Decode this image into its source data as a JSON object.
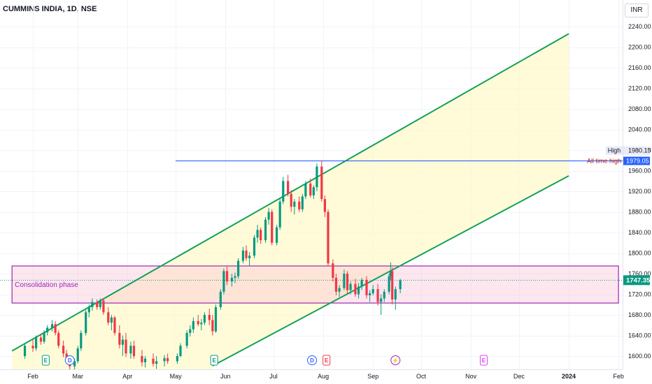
{
  "header": {
    "symbol_title": "CUMMINS INDIA, 1D, NSE",
    "currency": "INR"
  },
  "chart_data": {
    "type": "candlestick",
    "title": "CUMMINS INDIA, 1D, NSE",
    "y_ticks": [
      1600,
      1640,
      1680,
      1720,
      1760,
      1800,
      1840,
      1880,
      1920,
      1960,
      2000,
      2040,
      2080,
      2120,
      2160,
      2200,
      2240
    ],
    "y_tick_labels": [
      "1600.00",
      "1640.00",
      "1680.00",
      "1720.00",
      "1760.00",
      "1800.00",
      "1840.00",
      "1880.00",
      "1920.00",
      "1960.00",
      "2000.00",
      "2040.00",
      "2080.00",
      "2120.00",
      "2160.00",
      "2200.00",
      "2240.00"
    ],
    "ylim": [
      1582,
      2255
    ],
    "x_tick_labels": [
      "Feb",
      "Mar",
      "Apr",
      "May",
      "Jun",
      "Jul",
      "Aug",
      "Sep",
      "Oct",
      "Nov",
      "Dec",
      "2024",
      "Feb"
    ],
    "x_tick_dates": [
      "2023-02-01",
      "2023-03-01",
      "2023-04-01",
      "2023-05-01",
      "2023-06-01",
      "2023-07-01",
      "2023-08-01",
      "2023-09-01",
      "2023-10-01",
      "2023-11-01",
      "2023-12-01",
      "2024-01-01",
      "2024-02-01"
    ],
    "x_tick_bold": [
      false,
      false,
      false,
      false,
      false,
      false,
      false,
      false,
      false,
      false,
      false,
      true,
      false
    ],
    "last_price": {
      "value": 1747.35,
      "label": "1747.35"
    },
    "high_marker": {
      "label": "High",
      "value_label": "1980.15",
      "value": 1980.15
    },
    "all_time_high": {
      "label": "All time high",
      "value_label": "1979.05",
      "value": 1979.05,
      "start": "2023-05-01"
    },
    "consolidation_zone": {
      "label": "Consolidation phase",
      "top": 1775,
      "bottom": 1703,
      "start": "2023-01-19",
      "end": "2024-02-01"
    },
    "channel": {
      "upper": [
        [
          "2023-01-19",
          1610
        ],
        [
          "2024-01-01",
          2226
        ]
      ],
      "lower": [
        [
          "2023-05-24",
          1581
        ],
        [
          "2024-01-01",
          1950
        ]
      ]
    },
    "events": [
      {
        "type": "E",
        "date": "2023-02-09",
        "color": "#089981"
      },
      {
        "type": "D",
        "date": "2023-02-24",
        "color": "#2962ff"
      },
      {
        "type": "E",
        "date": "2023-05-25",
        "color": "#089981"
      },
      {
        "type": "D",
        "date": "2023-07-25",
        "color": "#2962ff"
      },
      {
        "type": "E",
        "date": "2023-08-03",
        "color": "#f23645"
      },
      {
        "type": "⚡",
        "date": "2023-09-15",
        "color": "#9c27b0"
      },
      {
        "type": "E",
        "date": "2023-11-09",
        "color": "#e040fb"
      }
    ],
    "series": [
      {
        "kind": "ohlc_daily",
        "data": [
          [
            "2023-01-27",
            1600,
            1625,
            1595,
            1620
          ],
          [
            "2023-02-01",
            1620,
            1632,
            1608,
            1615
          ],
          [
            "2023-02-03",
            1615,
            1640,
            1610,
            1636
          ],
          [
            "2023-02-06",
            1636,
            1642,
            1622,
            1628
          ],
          [
            "2023-02-08",
            1628,
            1650,
            1624,
            1646
          ],
          [
            "2023-02-10",
            1646,
            1660,
            1640,
            1655
          ],
          [
            "2023-02-13",
            1655,
            1670,
            1648,
            1662
          ],
          [
            "2023-02-15",
            1662,
            1668,
            1640,
            1645
          ],
          [
            "2023-02-17",
            1645,
            1650,
            1615,
            1620
          ],
          [
            "2023-02-20",
            1620,
            1630,
            1598,
            1605
          ],
          [
            "2023-02-22",
            1605,
            1612,
            1585,
            1590
          ],
          [
            "2023-02-24",
            1590,
            1600,
            1570,
            1580
          ],
          [
            "2023-02-27",
            1580,
            1595,
            1572,
            1590
          ],
          [
            "2023-03-01",
            1590,
            1620,
            1586,
            1615
          ],
          [
            "2023-03-03",
            1615,
            1650,
            1610,
            1645
          ],
          [
            "2023-03-06",
            1645,
            1690,
            1640,
            1685
          ],
          [
            "2023-03-08",
            1685,
            1700,
            1675,
            1695
          ],
          [
            "2023-03-10",
            1695,
            1712,
            1688,
            1705
          ],
          [
            "2023-03-13",
            1705,
            1710,
            1690,
            1695
          ],
          [
            "2023-03-15",
            1695,
            1712,
            1690,
            1708
          ],
          [
            "2023-03-17",
            1708,
            1712,
            1680,
            1685
          ],
          [
            "2023-03-20",
            1685,
            1695,
            1660,
            1665
          ],
          [
            "2023-03-22",
            1665,
            1680,
            1650,
            1675
          ],
          [
            "2023-03-24",
            1675,
            1678,
            1640,
            1645
          ],
          [
            "2023-03-27",
            1645,
            1660,
            1615,
            1622
          ],
          [
            "2023-03-29",
            1622,
            1640,
            1600,
            1632
          ],
          [
            "2023-03-31",
            1632,
            1645,
            1598,
            1605
          ],
          [
            "2023-04-03",
            1605,
            1628,
            1595,
            1620
          ],
          [
            "2023-04-05",
            1620,
            1630,
            1595,
            1600
          ],
          [
            "2023-04-10",
            1600,
            1612,
            1580,
            1588
          ],
          [
            "2023-04-12",
            1588,
            1600,
            1578,
            1595
          ],
          [
            "2023-04-17",
            1595,
            1605,
            1580,
            1585
          ],
          [
            "2023-04-19",
            1585,
            1600,
            1575,
            1590
          ],
          [
            "2023-04-24",
            1590,
            1602,
            1580,
            1596
          ],
          [
            "2023-04-26",
            1596,
            1605,
            1585,
            1590
          ],
          [
            "2023-05-02",
            1590,
            1605,
            1585,
            1600
          ],
          [
            "2023-05-04",
            1600,
            1625,
            1598,
            1620
          ],
          [
            "2023-05-08",
            1620,
            1650,
            1615,
            1645
          ],
          [
            "2023-05-10",
            1645,
            1660,
            1638,
            1652
          ],
          [
            "2023-05-12",
            1652,
            1675,
            1645,
            1668
          ],
          [
            "2023-05-15",
            1668,
            1680,
            1658,
            1662
          ],
          [
            "2023-05-17",
            1662,
            1672,
            1650,
            1665
          ],
          [
            "2023-05-19",
            1665,
            1685,
            1660,
            1680
          ],
          [
            "2023-05-22",
            1680,
            1692,
            1660,
            1670
          ],
          [
            "2023-05-24",
            1670,
            1680,
            1640,
            1648
          ],
          [
            "2023-05-26",
            1648,
            1700,
            1645,
            1695
          ],
          [
            "2023-05-29",
            1695,
            1730,
            1690,
            1725
          ],
          [
            "2023-05-31",
            1725,
            1770,
            1720,
            1765
          ],
          [
            "2023-06-02",
            1765,
            1775,
            1738,
            1745
          ],
          [
            "2023-06-05",
            1745,
            1760,
            1735,
            1752
          ],
          [
            "2023-06-07",
            1752,
            1762,
            1742,
            1755
          ],
          [
            "2023-06-09",
            1755,
            1790,
            1750,
            1785
          ],
          [
            "2023-06-12",
            1785,
            1812,
            1780,
            1805
          ],
          [
            "2023-06-14",
            1805,
            1815,
            1785,
            1790
          ],
          [
            "2023-06-16",
            1790,
            1802,
            1775,
            1795
          ],
          [
            "2023-06-19",
            1795,
            1835,
            1790,
            1830
          ],
          [
            "2023-06-21",
            1830,
            1855,
            1820,
            1845
          ],
          [
            "2023-06-23",
            1845,
            1850,
            1818,
            1825
          ],
          [
            "2023-06-26",
            1825,
            1870,
            1820,
            1865
          ],
          [
            "2023-06-28",
            1865,
            1888,
            1855,
            1880
          ],
          [
            "2023-06-30",
            1880,
            1885,
            1815,
            1820
          ],
          [
            "2023-07-03",
            1820,
            1855,
            1815,
            1850
          ],
          [
            "2023-07-05",
            1850,
            1905,
            1845,
            1900
          ],
          [
            "2023-07-07",
            1900,
            1948,
            1895,
            1940
          ],
          [
            "2023-07-10",
            1940,
            1952,
            1910,
            1915
          ],
          [
            "2023-07-12",
            1915,
            1922,
            1880,
            1890
          ],
          [
            "2023-07-14",
            1890,
            1905,
            1875,
            1900
          ],
          [
            "2023-07-17",
            1900,
            1910,
            1880,
            1885
          ],
          [
            "2023-07-19",
            1885,
            1915,
            1880,
            1910
          ],
          [
            "2023-07-21",
            1910,
            1940,
            1905,
            1935
          ],
          [
            "2023-07-24",
            1935,
            1945,
            1908,
            1912
          ],
          [
            "2023-07-26",
            1912,
            1932,
            1905,
            1928
          ],
          [
            "2023-07-28",
            1928,
            1974,
            1920,
            1968
          ],
          [
            "2023-07-31",
            1968,
            1980,
            1900,
            1905
          ],
          [
            "2023-08-02",
            1905,
            1912,
            1870,
            1880
          ],
          [
            "2023-08-04",
            1880,
            1885,
            1775,
            1780
          ],
          [
            "2023-08-07",
            1780,
            1788,
            1745,
            1752
          ],
          [
            "2023-08-09",
            1752,
            1760,
            1718,
            1725
          ],
          [
            "2023-08-11",
            1725,
            1738,
            1715,
            1732
          ],
          [
            "2023-08-14",
            1732,
            1768,
            1728,
            1760
          ],
          [
            "2023-08-16",
            1760,
            1765,
            1722,
            1728
          ],
          [
            "2023-08-18",
            1728,
            1745,
            1720,
            1740
          ],
          [
            "2023-08-21",
            1740,
            1750,
            1715,
            1720
          ],
          [
            "2023-08-23",
            1720,
            1742,
            1712,
            1735
          ],
          [
            "2023-08-25",
            1735,
            1752,
            1728,
            1748
          ],
          [
            "2023-08-28",
            1748,
            1755,
            1712,
            1718
          ],
          [
            "2023-08-30",
            1718,
            1728,
            1705,
            1722
          ],
          [
            "2023-09-01",
            1722,
            1738,
            1718,
            1730
          ],
          [
            "2023-09-04",
            1730,
            1740,
            1698,
            1705
          ],
          [
            "2023-09-06",
            1705,
            1720,
            1680,
            1712
          ],
          [
            "2023-09-08",
            1712,
            1730,
            1705,
            1725
          ],
          [
            "2023-09-11",
            1725,
            1760,
            1720,
            1755
          ],
          [
            "2023-09-12",
            1755,
            1782,
            1748,
            1765
          ],
          [
            "2023-09-13",
            1765,
            1772,
            1700,
            1710
          ],
          [
            "2023-09-15",
            1710,
            1735,
            1690,
            1730
          ],
          [
            "2023-09-18",
            1730,
            1750,
            1722,
            1747.35
          ]
        ]
      }
    ],
    "colors": {
      "up": "#089981",
      "down": "#f23645",
      "channel": "#15a05a",
      "ath": "#2962ff",
      "zone": "#9c27b0"
    }
  }
}
